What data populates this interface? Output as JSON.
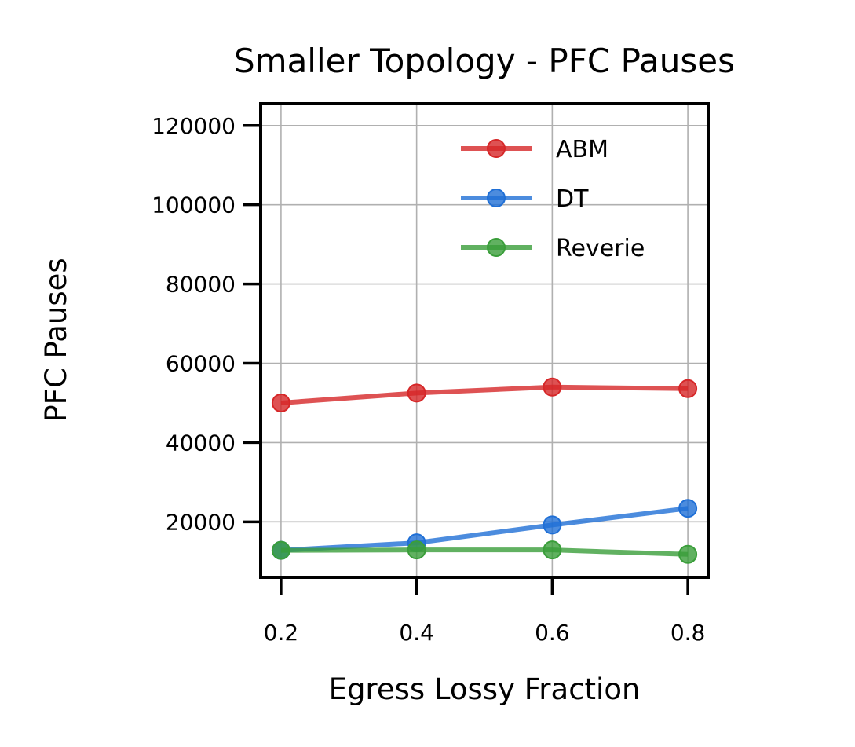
{
  "chart_data": {
    "type": "line",
    "title": "Smaller Topology - PFC Pauses",
    "xlabel": "Egress Lossy Fraction",
    "ylabel": "PFC Pauses",
    "x": [
      0.2,
      0.4,
      0.6,
      0.8
    ],
    "x_ticks": [
      "0.2",
      "0.4",
      "0.6",
      "0.8"
    ],
    "xlim": [
      0.17,
      0.83
    ],
    "y_ticks": [
      "20000",
      "40000",
      "60000",
      "80000",
      "100000",
      "120000"
    ],
    "ylim": [
      6000,
      125500
    ],
    "grid": true,
    "legend_position": "top-right",
    "series": [
      {
        "name": "ABM",
        "color": "#d62728",
        "values": [
          50000,
          52500,
          54000,
          53600
        ]
      },
      {
        "name": "DT",
        "color": "#1f6fd6",
        "values": [
          12800,
          14700,
          19200,
          23400
        ]
      },
      {
        "name": "Reverie",
        "color": "#3a9e3a",
        "values": [
          12800,
          12900,
          12900,
          11800
        ]
      }
    ]
  }
}
